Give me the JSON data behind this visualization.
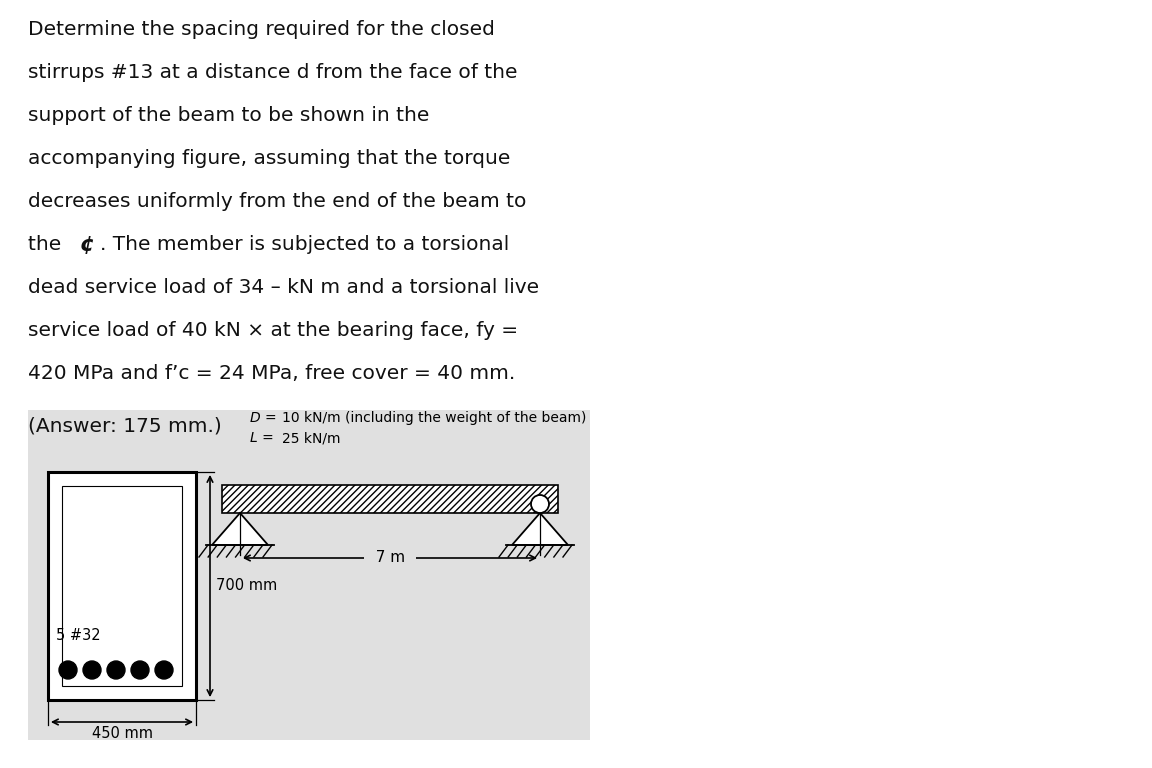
{
  "lines": [
    "Determine the spacing required for the closed",
    "stirrups #13 at a distance d from the face of the",
    "support of the beam to be shown in the",
    "accompanying figure, assuming that the torque",
    "decreases uniformly from the end of the beam to",
    "the",
    ". The member is subjected to a torsional",
    "dead service load of 34 – kN m and a torsional live",
    "service load of 40 kN × at the bearing face, fy =",
    "420 MPa and f’c = 24 MPa, free cover = 40 mm."
  ],
  "answer_text": "(Answer: 175 mm.)",
  "D_label": "D =",
  "D_value": "10 kN/m (including the weight of the beam)",
  "L_label": "L =",
  "L_value": "25 kN/m",
  "dim_700": "700 mm",
  "dim_450": "450 mm",
  "dim_7m": "7 m",
  "bar_label": "5 #32",
  "bg_color": "#e0e0e0",
  "text_color": "#111111"
}
